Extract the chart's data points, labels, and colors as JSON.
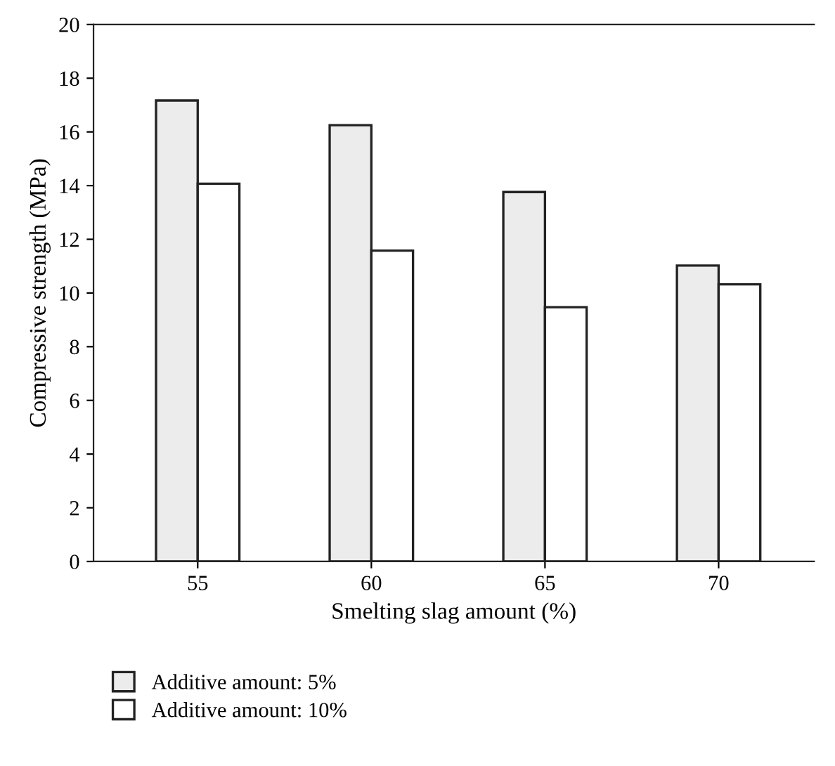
{
  "chart_data": {
    "type": "bar",
    "xlabel": "Smelting slag amount (%)",
    "ylabel": "Compressive strength (MPa)",
    "categories": [
      "55",
      "60",
      "65",
      "70"
    ],
    "series": [
      {
        "name": "Additive amount: 5%",
        "color": "#ececec",
        "values": [
          17.17,
          16.25,
          13.76,
          11.02
        ]
      },
      {
        "name": "Additive amount: 10%",
        "color": "#ffffff",
        "values": [
          14.07,
          11.58,
          9.47,
          10.32
        ]
      }
    ],
    "ylim": [
      0,
      20
    ],
    "yticks": [
      0,
      2,
      4,
      6,
      8,
      10,
      12,
      14,
      16,
      18,
      20
    ],
    "grid": false,
    "legend": "bottom left"
  }
}
